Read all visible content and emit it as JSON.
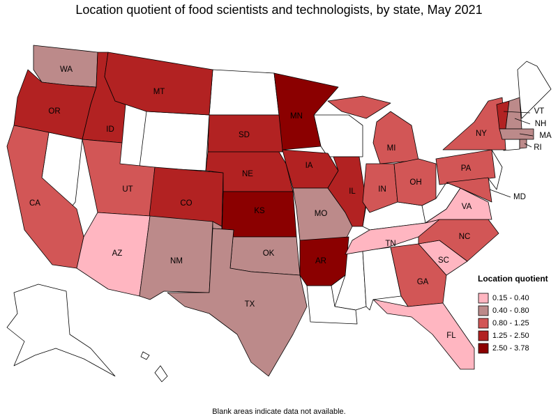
{
  "title": "Location quotient of food scientists and technologists, by state, May 2021",
  "legend": {
    "title": "Location quotient",
    "items": [
      {
        "label": "0.15 - 0.40",
        "color": "#ffb6c1"
      },
      {
        "label": "0.40 - 0.80",
        "color": "#bc8a8a"
      },
      {
        "label": "0.80 - 1.25",
        "color": "#d25656"
      },
      {
        "label": "1.25 - 2.50",
        "color": "#b22222"
      },
      {
        "label": "2.50 - 3.78",
        "color": "#8b0000"
      }
    ]
  },
  "states": [
    {
      "label": "WA",
      "bin": 1
    },
    {
      "label": "OR",
      "bin": 3
    },
    {
      "label": "ID",
      "bin": 3
    },
    {
      "label": "MT",
      "bin": 3
    },
    {
      "label": "CA",
      "bin": 2
    },
    {
      "label": "UT",
      "bin": 2
    },
    {
      "label": "CO",
      "bin": 3
    },
    {
      "label": "AZ",
      "bin": 0
    },
    {
      "label": "NM",
      "bin": 1
    },
    {
      "label": "SD",
      "bin": 3
    },
    {
      "label": "NE",
      "bin": 3
    },
    {
      "label": "KS",
      "bin": 4
    },
    {
      "label": "OK",
      "bin": 1
    },
    {
      "label": "TX",
      "bin": 1
    },
    {
      "label": "MN",
      "bin": 4
    },
    {
      "label": "IA",
      "bin": 3
    },
    {
      "label": "MO",
      "bin": 1
    },
    {
      "label": "AR",
      "bin": 4
    },
    {
      "label": "IL",
      "bin": 3
    },
    {
      "label": "MI",
      "bin": 2
    },
    {
      "label": "IN",
      "bin": 2
    },
    {
      "label": "OH",
      "bin": 2
    },
    {
      "label": "TN",
      "bin": 0
    },
    {
      "label": "GA",
      "bin": 2
    },
    {
      "label": "FL",
      "bin": 0
    },
    {
      "label": "SC",
      "bin": 0
    },
    {
      "label": "NC",
      "bin": 2
    },
    {
      "label": "VA",
      "bin": 0
    },
    {
      "label": "PA",
      "bin": 2
    },
    {
      "label": "NY",
      "bin": 2
    },
    {
      "label": "MD",
      "bin": 2
    },
    {
      "label": "VT",
      "bin": 3
    },
    {
      "label": "NH",
      "bin": 1
    },
    {
      "label": "MA",
      "bin": 1
    },
    {
      "label": "RI",
      "bin": 1
    }
  ],
  "footnote": "Blank areas indicate data not available."
}
